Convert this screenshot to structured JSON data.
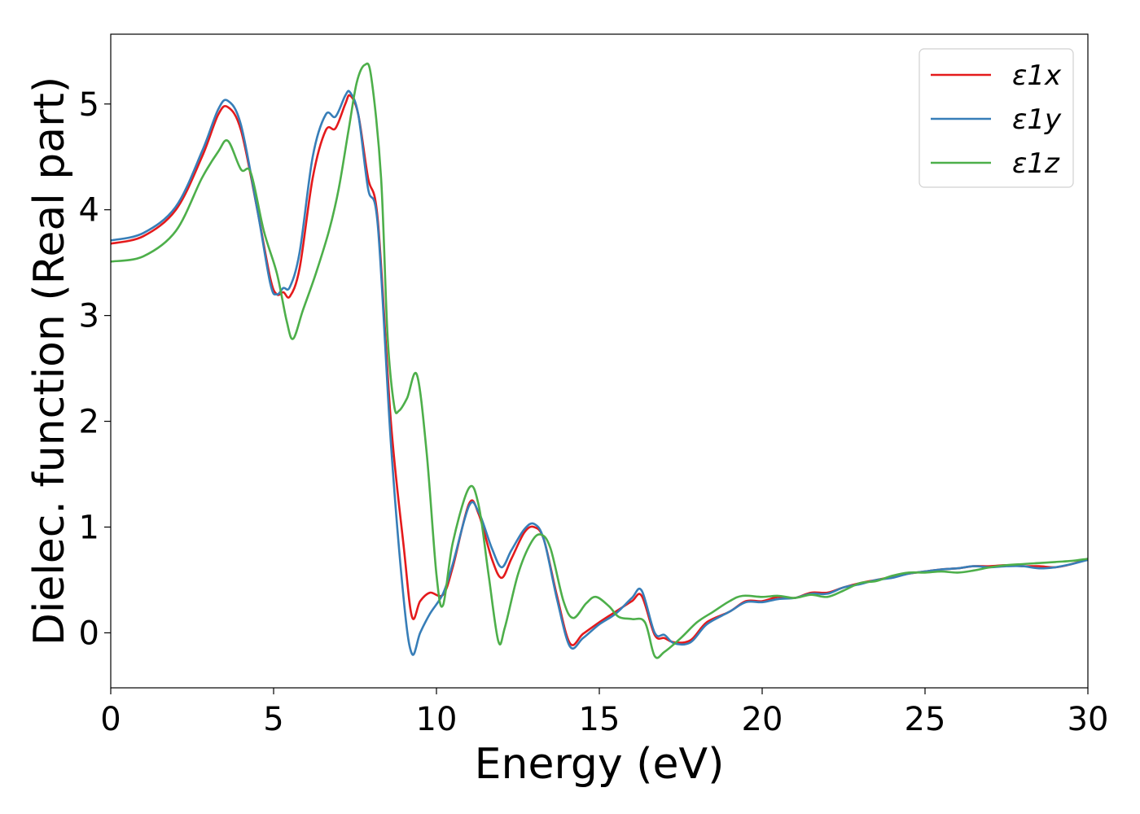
{
  "chart_data": {
    "type": "line",
    "title": "",
    "xlabel": "Energy (eV)",
    "ylabel": "Dielec. function (Real part)",
    "xlim": [
      0,
      30
    ],
    "ylim": [
      -0.52,
      5.66
    ],
    "xticks": [
      0,
      5,
      10,
      15,
      20,
      25,
      30
    ],
    "yticks": [
      0,
      1,
      2,
      3,
      4,
      5
    ],
    "grid": false,
    "legend_position": "top-right",
    "series": [
      {
        "name": "ε1x",
        "color": "#e41a1c",
        "points": [
          [
            0,
            3.68
          ],
          [
            1,
            3.75
          ],
          [
            2,
            4.0
          ],
          [
            2.8,
            4.5
          ],
          [
            3.3,
            4.9
          ],
          [
            3.6,
            4.97
          ],
          [
            4.0,
            4.75
          ],
          [
            4.5,
            4.0
          ],
          [
            4.9,
            3.35
          ],
          [
            5.1,
            3.2
          ],
          [
            5.3,
            3.22
          ],
          [
            5.5,
            3.18
          ],
          [
            5.8,
            3.45
          ],
          [
            6.2,
            4.3
          ],
          [
            6.6,
            4.75
          ],
          [
            6.9,
            4.77
          ],
          [
            7.2,
            5.0
          ],
          [
            7.35,
            5.08
          ],
          [
            7.6,
            4.9
          ],
          [
            7.9,
            4.3
          ],
          [
            8.2,
            3.9
          ],
          [
            8.6,
            2.0
          ],
          [
            9.0,
            0.8
          ],
          [
            9.25,
            0.15
          ],
          [
            9.5,
            0.3
          ],
          [
            9.8,
            0.38
          ],
          [
            10.2,
            0.36
          ],
          [
            10.5,
            0.62
          ],
          [
            11.0,
            1.22
          ],
          [
            11.3,
            1.12
          ],
          [
            11.7,
            0.7
          ],
          [
            12.0,
            0.52
          ],
          [
            12.3,
            0.7
          ],
          [
            12.7,
            0.95
          ],
          [
            13.0,
            1.0
          ],
          [
            13.3,
            0.88
          ],
          [
            13.7,
            0.35
          ],
          [
            14.1,
            -0.1
          ],
          [
            14.5,
            -0.01
          ],
          [
            15.0,
            0.1
          ],
          [
            15.5,
            0.2
          ],
          [
            16.0,
            0.3
          ],
          [
            16.3,
            0.35
          ],
          [
            16.7,
            -0.02
          ],
          [
            17.0,
            -0.05
          ],
          [
            17.3,
            -0.09
          ],
          [
            17.8,
            -0.07
          ],
          [
            18.3,
            0.1
          ],
          [
            19.0,
            0.2
          ],
          [
            19.5,
            0.3
          ],
          [
            20.0,
            0.3
          ],
          [
            20.5,
            0.34
          ],
          [
            21.0,
            0.33
          ],
          [
            21.5,
            0.38
          ],
          [
            22.0,
            0.38
          ],
          [
            22.5,
            0.43
          ],
          [
            23.0,
            0.47
          ],
          [
            23.5,
            0.5
          ],
          [
            24.0,
            0.53
          ],
          [
            24.5,
            0.56
          ],
          [
            25.0,
            0.58
          ],
          [
            25.5,
            0.6
          ],
          [
            26.0,
            0.61
          ],
          [
            26.5,
            0.63
          ],
          [
            27.0,
            0.63
          ],
          [
            27.5,
            0.64
          ],
          [
            28.0,
            0.63
          ],
          [
            28.5,
            0.63
          ],
          [
            29.0,
            0.62
          ],
          [
            29.5,
            0.65
          ],
          [
            30,
            0.7
          ]
        ]
      },
      {
        "name": "ε1y",
        "color": "#377eb8",
        "points": [
          [
            0,
            3.71
          ],
          [
            1,
            3.78
          ],
          [
            2,
            4.03
          ],
          [
            2.8,
            4.55
          ],
          [
            3.3,
            4.95
          ],
          [
            3.6,
            5.03
          ],
          [
            4.0,
            4.8
          ],
          [
            4.5,
            4.0
          ],
          [
            4.9,
            3.3
          ],
          [
            5.1,
            3.2
          ],
          [
            5.3,
            3.26
          ],
          [
            5.5,
            3.27
          ],
          [
            5.8,
            3.6
          ],
          [
            6.2,
            4.5
          ],
          [
            6.6,
            4.9
          ],
          [
            6.9,
            4.88
          ],
          [
            7.2,
            5.08
          ],
          [
            7.35,
            5.11
          ],
          [
            7.6,
            4.9
          ],
          [
            7.9,
            4.2
          ],
          [
            8.2,
            3.85
          ],
          [
            8.6,
            1.8
          ],
          [
            9.0,
            0.3
          ],
          [
            9.25,
            -0.2
          ],
          [
            9.5,
            0.0
          ],
          [
            9.8,
            0.18
          ],
          [
            10.2,
            0.37
          ],
          [
            10.5,
            0.65
          ],
          [
            11.0,
            1.2
          ],
          [
            11.3,
            1.14
          ],
          [
            11.7,
            0.8
          ],
          [
            12.0,
            0.62
          ],
          [
            12.3,
            0.78
          ],
          [
            12.7,
            0.98
          ],
          [
            13.0,
            1.03
          ],
          [
            13.3,
            0.88
          ],
          [
            13.7,
            0.32
          ],
          [
            14.1,
            -0.13
          ],
          [
            14.5,
            -0.05
          ],
          [
            15.0,
            0.08
          ],
          [
            15.5,
            0.18
          ],
          [
            16.0,
            0.33
          ],
          [
            16.3,
            0.4
          ],
          [
            16.7,
            0.0
          ],
          [
            17.0,
            -0.02
          ],
          [
            17.3,
            -0.1
          ],
          [
            17.8,
            -0.09
          ],
          [
            18.3,
            0.08
          ],
          [
            19.0,
            0.2
          ],
          [
            19.5,
            0.29
          ],
          [
            20.0,
            0.29
          ],
          [
            20.5,
            0.32
          ],
          [
            21.0,
            0.33
          ],
          [
            21.5,
            0.37
          ],
          [
            22.0,
            0.37
          ],
          [
            22.5,
            0.43
          ],
          [
            23.0,
            0.46
          ],
          [
            23.5,
            0.5
          ],
          [
            24.0,
            0.52
          ],
          [
            24.5,
            0.56
          ],
          [
            25.0,
            0.58
          ],
          [
            25.5,
            0.6
          ],
          [
            26.0,
            0.61
          ],
          [
            26.5,
            0.63
          ],
          [
            27.0,
            0.62
          ],
          [
            27.5,
            0.63
          ],
          [
            28.0,
            0.63
          ],
          [
            28.5,
            0.61
          ],
          [
            29.0,
            0.62
          ],
          [
            29.5,
            0.65
          ],
          [
            30,
            0.69
          ]
        ]
      },
      {
        "name": "ε1z",
        "color": "#4daf4a",
        "points": [
          [
            0,
            3.51
          ],
          [
            1,
            3.56
          ],
          [
            2,
            3.8
          ],
          [
            2.8,
            4.3
          ],
          [
            3.3,
            4.55
          ],
          [
            3.6,
            4.65
          ],
          [
            4.0,
            4.38
          ],
          [
            4.3,
            4.35
          ],
          [
            4.7,
            3.8
          ],
          [
            5.1,
            3.4
          ],
          [
            5.4,
            2.95
          ],
          [
            5.6,
            2.78
          ],
          [
            5.9,
            3.05
          ],
          [
            6.3,
            3.4
          ],
          [
            6.7,
            3.8
          ],
          [
            7.0,
            4.2
          ],
          [
            7.3,
            4.75
          ],
          [
            7.55,
            5.2
          ],
          [
            7.8,
            5.37
          ],
          [
            8.0,
            5.25
          ],
          [
            8.3,
            4.3
          ],
          [
            8.5,
            2.8
          ],
          [
            8.7,
            2.15
          ],
          [
            8.85,
            2.1
          ],
          [
            9.1,
            2.22
          ],
          [
            9.4,
            2.44
          ],
          [
            9.7,
            1.7
          ],
          [
            10.0,
            0.55
          ],
          [
            10.2,
            0.26
          ],
          [
            10.5,
            0.85
          ],
          [
            11.0,
            1.37
          ],
          [
            11.3,
            1.2
          ],
          [
            11.6,
            0.55
          ],
          [
            11.9,
            -0.08
          ],
          [
            12.1,
            0.05
          ],
          [
            12.5,
            0.55
          ],
          [
            12.9,
            0.85
          ],
          [
            13.2,
            0.93
          ],
          [
            13.5,
            0.8
          ],
          [
            13.9,
            0.3
          ],
          [
            14.2,
            0.14
          ],
          [
            14.6,
            0.28
          ],
          [
            14.9,
            0.34
          ],
          [
            15.3,
            0.25
          ],
          [
            15.6,
            0.15
          ],
          [
            16.0,
            0.13
          ],
          [
            16.4,
            0.1
          ],
          [
            16.7,
            -0.22
          ],
          [
            17.0,
            -0.18
          ],
          [
            17.5,
            -0.05
          ],
          [
            18.0,
            0.1
          ],
          [
            18.5,
            0.2
          ],
          [
            19.0,
            0.3
          ],
          [
            19.4,
            0.35
          ],
          [
            20.0,
            0.34
          ],
          [
            20.5,
            0.35
          ],
          [
            21.0,
            0.33
          ],
          [
            21.5,
            0.36
          ],
          [
            22.0,
            0.34
          ],
          [
            22.5,
            0.4
          ],
          [
            23.0,
            0.47
          ],
          [
            23.5,
            0.49
          ],
          [
            24.0,
            0.54
          ],
          [
            24.5,
            0.57
          ],
          [
            25.0,
            0.57
          ],
          [
            25.5,
            0.58
          ],
          [
            26.0,
            0.57
          ],
          [
            26.5,
            0.59
          ],
          [
            27.0,
            0.62
          ],
          [
            27.5,
            0.64
          ],
          [
            28.0,
            0.65
          ],
          [
            28.5,
            0.66
          ],
          [
            29.0,
            0.67
          ],
          [
            29.5,
            0.68
          ],
          [
            30,
            0.7
          ]
        ]
      }
    ]
  }
}
